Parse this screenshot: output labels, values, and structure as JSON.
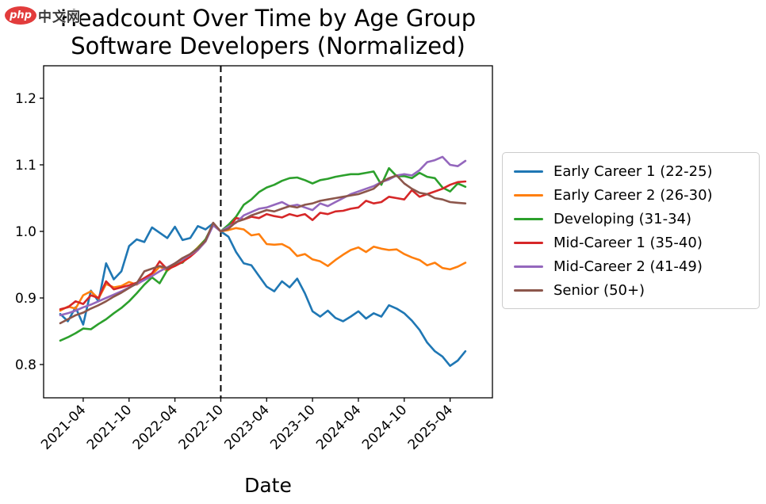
{
  "watermark": {
    "logo_text": "php",
    "site_text": "中文网"
  },
  "title": {
    "line1": "Headcount Over Time by Age Group",
    "line2": "Software Developers (Normalized)"
  },
  "chart_data": {
    "type": "line",
    "title": "Headcount Over Time by Age Group",
    "subtitle": "Software Developers (Normalized)",
    "xlabel": "Date",
    "ylabel": "",
    "ylim": [
      0.75,
      1.25
    ],
    "y_ticks": [
      0.8,
      0.9,
      1.0,
      1.1,
      1.2
    ],
    "x_tick_labels": [
      "2021-04",
      "2021-10",
      "2022-04",
      "2022-10",
      "2023-04",
      "2023-10",
      "2024-04",
      "2024-10",
      "2025-04"
    ],
    "x_tick_indices": [
      3,
      9,
      15,
      21,
      27,
      33,
      39,
      45,
      51
    ],
    "grid": false,
    "legend_position": "right-outside",
    "vline": {
      "x": "2022-10",
      "index": 21,
      "style": "dashed",
      "color": "#000000"
    },
    "x": [
      "2021-01",
      "2021-02",
      "2021-03",
      "2021-04",
      "2021-05",
      "2021-06",
      "2021-07",
      "2021-08",
      "2021-09",
      "2021-10",
      "2021-11",
      "2021-12",
      "2022-01",
      "2022-02",
      "2022-03",
      "2022-04",
      "2022-05",
      "2022-06",
      "2022-07",
      "2022-08",
      "2022-09",
      "2022-10",
      "2022-11",
      "2022-12",
      "2023-01",
      "2023-02",
      "2023-03",
      "2023-04",
      "2023-05",
      "2023-06",
      "2023-07",
      "2023-08",
      "2023-09",
      "2023-10",
      "2023-11",
      "2023-12",
      "2024-01",
      "2024-02",
      "2024-03",
      "2024-04",
      "2024-05",
      "2024-06",
      "2024-07",
      "2024-08",
      "2024-09",
      "2024-10",
      "2024-11",
      "2024-12",
      "2025-01",
      "2025-02",
      "2025-03",
      "2025-04",
      "2025-05",
      "2025-06"
    ],
    "series": [
      {
        "name": "Early Career 1 (22-25)",
        "color": "#1f77b4",
        "values": [
          0.876,
          0.865,
          0.886,
          0.86,
          0.911,
          0.895,
          0.952,
          0.928,
          0.94,
          0.978,
          0.988,
          0.984,
          1.006,
          0.998,
          0.99,
          1.007,
          0.987,
          0.99,
          1.008,
          1.003,
          1.012,
          1.0,
          0.992,
          0.969,
          0.952,
          0.949,
          0.933,
          0.917,
          0.91,
          0.925,
          0.916,
          0.929,
          0.907,
          0.88,
          0.872,
          0.881,
          0.87,
          0.865,
          0.872,
          0.88,
          0.869,
          0.877,
          0.872,
          0.889,
          0.884,
          0.877,
          0.866,
          0.852,
          0.833,
          0.82,
          0.812,
          0.798,
          0.806,
          0.82
        ]
      },
      {
        "name": "Early Career 2 (26-30)",
        "color": "#ff7f0e",
        "values": [
          0.881,
          0.887,
          0.884,
          0.904,
          0.91,
          0.899,
          0.921,
          0.916,
          0.918,
          0.924,
          0.92,
          0.928,
          0.935,
          0.947,
          0.941,
          0.95,
          0.958,
          0.965,
          0.976,
          0.988,
          1.01,
          1.0,
          1.002,
          1.005,
          1.003,
          0.994,
          0.996,
          0.981,
          0.98,
          0.981,
          0.975,
          0.963,
          0.966,
          0.958,
          0.955,
          0.948,
          0.957,
          0.965,
          0.972,
          0.976,
          0.969,
          0.977,
          0.974,
          0.972,
          0.973,
          0.966,
          0.961,
          0.957,
          0.949,
          0.953,
          0.945,
          0.943,
          0.947,
          0.953
        ]
      },
      {
        "name": "Developing (31-34)",
        "color": "#2ca02c",
        "values": [
          0.836,
          0.841,
          0.847,
          0.854,
          0.853,
          0.861,
          0.868,
          0.877,
          0.885,
          0.895,
          0.907,
          0.92,
          0.931,
          0.922,
          0.942,
          0.951,
          0.953,
          0.966,
          0.975,
          0.988,
          1.011,
          1.0,
          1.01,
          1.022,
          1.04,
          1.048,
          1.059,
          1.066,
          1.07,
          1.076,
          1.08,
          1.081,
          1.077,
          1.072,
          1.077,
          1.079,
          1.082,
          1.084,
          1.086,
          1.086,
          1.088,
          1.09,
          1.07,
          1.095,
          1.083,
          1.083,
          1.08,
          1.088,
          1.082,
          1.08,
          1.066,
          1.06,
          1.072,
          1.067
        ]
      },
      {
        "name": "Mid-Career 1 (35-40)",
        "color": "#d62728",
        "values": [
          0.883,
          0.886,
          0.895,
          0.891,
          0.904,
          0.9,
          0.925,
          0.913,
          0.916,
          0.919,
          0.923,
          0.93,
          0.937,
          0.955,
          0.943,
          0.948,
          0.954,
          0.962,
          0.972,
          0.985,
          1.01,
          1.0,
          1.005,
          1.02,
          1.018,
          1.022,
          1.02,
          1.026,
          1.023,
          1.021,
          1.026,
          1.023,
          1.026,
          1.017,
          1.028,
          1.026,
          1.03,
          1.031,
          1.034,
          1.036,
          1.046,
          1.042,
          1.044,
          1.052,
          1.05,
          1.048,
          1.062,
          1.052,
          1.056,
          1.06,
          1.064,
          1.07,
          1.074,
          1.075
        ]
      },
      {
        "name": "Mid-Career 2 (41-49)",
        "color": "#9467bd",
        "values": [
          0.874,
          0.877,
          0.881,
          0.886,
          0.89,
          0.895,
          0.9,
          0.905,
          0.91,
          0.916,
          0.921,
          0.927,
          0.933,
          0.94,
          0.946,
          0.952,
          0.958,
          0.965,
          0.972,
          0.985,
          1.009,
          1.0,
          1.007,
          1.013,
          1.024,
          1.029,
          1.034,
          1.036,
          1.04,
          1.044,
          1.038,
          1.04,
          1.036,
          1.032,
          1.042,
          1.038,
          1.044,
          1.05,
          1.056,
          1.06,
          1.064,
          1.068,
          1.074,
          1.078,
          1.084,
          1.086,
          1.084,
          1.092,
          1.104,
          1.107,
          1.112,
          1.1,
          1.098,
          1.106
        ]
      },
      {
        "name": "Senior (50+)",
        "color": "#8c564b",
        "values": [
          0.862,
          0.868,
          0.874,
          0.878,
          0.884,
          0.889,
          0.895,
          0.902,
          0.908,
          0.915,
          0.922,
          0.94,
          0.944,
          0.948,
          0.945,
          0.952,
          0.96,
          0.966,
          0.974,
          0.986,
          1.013,
          1.0,
          1.004,
          1.014,
          1.018,
          1.024,
          1.028,
          1.032,
          1.03,
          1.034,
          1.038,
          1.036,
          1.04,
          1.042,
          1.046,
          1.048,
          1.05,
          1.052,
          1.054,
          1.056,
          1.06,
          1.064,
          1.074,
          1.08,
          1.084,
          1.072,
          1.064,
          1.058,
          1.056,
          1.05,
          1.048,
          1.044,
          1.043,
          1.042
        ]
      }
    ]
  }
}
